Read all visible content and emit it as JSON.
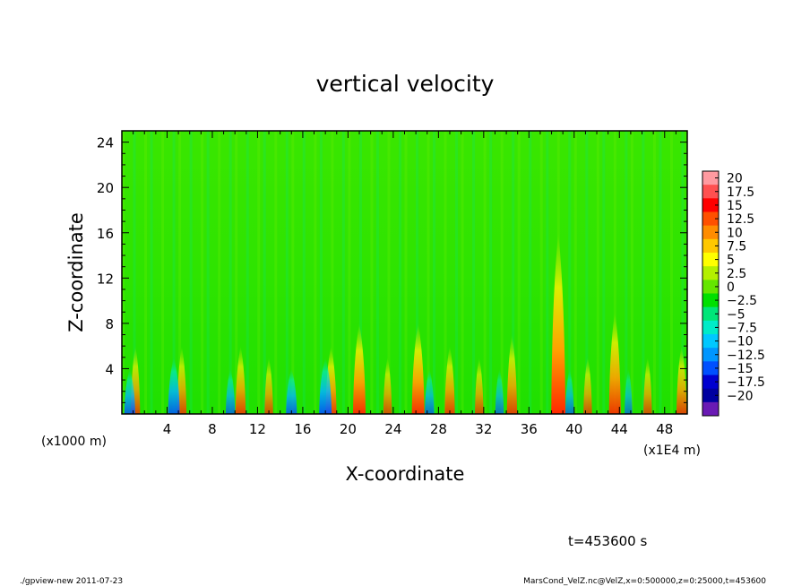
{
  "chart_data": {
    "type": "heatmap",
    "title": "vertical velocity",
    "xlabel": "X-coordinate",
    "ylabel": "Z-coordinate",
    "xlim": [
      0,
      50
    ],
    "ylim": [
      0,
      25
    ],
    "x_ticks": [
      4,
      8,
      12,
      16,
      20,
      24,
      28,
      32,
      36,
      40,
      44,
      48
    ],
    "y_ticks": [
      4,
      8,
      12,
      16,
      20,
      24
    ],
    "x_unit": "(x1E4 m)",
    "y_unit": "(x1000 m)",
    "colorbar": {
      "labels": [
        "20",
        "17.5",
        "15",
        "12.5",
        "10",
        "7.5",
        "5",
        "2.5",
        "0",
        "−2.5",
        "−5",
        "−7.5",
        "−10",
        "−12.5",
        "−15",
        "−17.5",
        "−20"
      ],
      "colors": [
        "#ff9aa0",
        "#ff5050",
        "#ff0000",
        "#ff5000",
        "#ff8c00",
        "#ffc800",
        "#ffff00",
        "#b4f000",
        "#64e600",
        "#00e000",
        "#00e678",
        "#00ebc8",
        "#00c8ff",
        "#0096ff",
        "#0050ff",
        "#0000d0",
        "#0000a0",
        "#6a1ab4"
      ]
    },
    "features": [
      {
        "x": 38.6,
        "z_top": 16,
        "peak": 12
      },
      {
        "x": 26.2,
        "z_top": 8,
        "peak": 10
      },
      {
        "x": 21.0,
        "z_top": 8,
        "peak": 10
      },
      {
        "x": 43.6,
        "z_top": 9,
        "peak": 9
      },
      {
        "x": 18.5,
        "z_top": 6,
        "peak": 8
      },
      {
        "x": 34.5,
        "z_top": 7,
        "peak": 7
      },
      {
        "x": 29.0,
        "z_top": 6,
        "peak": 7
      },
      {
        "x": 5.3,
        "z_top": 6,
        "peak": 6
      },
      {
        "x": 10.5,
        "z_top": 6,
        "peak": 7
      },
      {
        "x": 1.2,
        "z_top": 6,
        "peak": 6
      },
      {
        "x": 13.0,
        "z_top": 5,
        "peak": 5
      },
      {
        "x": 23.5,
        "z_top": 5,
        "peak": 5
      },
      {
        "x": 31.6,
        "z_top": 5,
        "peak": 5
      },
      {
        "x": 41.2,
        "z_top": 5,
        "peak": 5
      },
      {
        "x": 46.5,
        "z_top": 5,
        "peak": 5
      },
      {
        "x": 49.5,
        "z_top": 6,
        "peak": 7
      },
      {
        "x": 4.6,
        "z_top": 5,
        "peak": -9
      },
      {
        "x": 18.0,
        "z_top": 5,
        "peak": -10
      },
      {
        "x": 15.0,
        "z_top": 4,
        "peak": -8
      },
      {
        "x": 0.7,
        "z_top": 4,
        "peak": -8
      },
      {
        "x": 9.6,
        "z_top": 4,
        "peak": -6
      },
      {
        "x": 27.2,
        "z_top": 4,
        "peak": -6
      },
      {
        "x": 33.4,
        "z_top": 4,
        "peak": -5
      },
      {
        "x": 39.6,
        "z_top": 4,
        "peak": -5
      },
      {
        "x": 44.8,
        "z_top": 4,
        "peak": -4
      }
    ]
  },
  "annotation": "t=453600 s",
  "footer": {
    "left": "./gpview-new   2011-07-23",
    "right": "MarsCond_VelZ.nc@VelZ,x=0:500000,z=0:25000,t=453600"
  }
}
